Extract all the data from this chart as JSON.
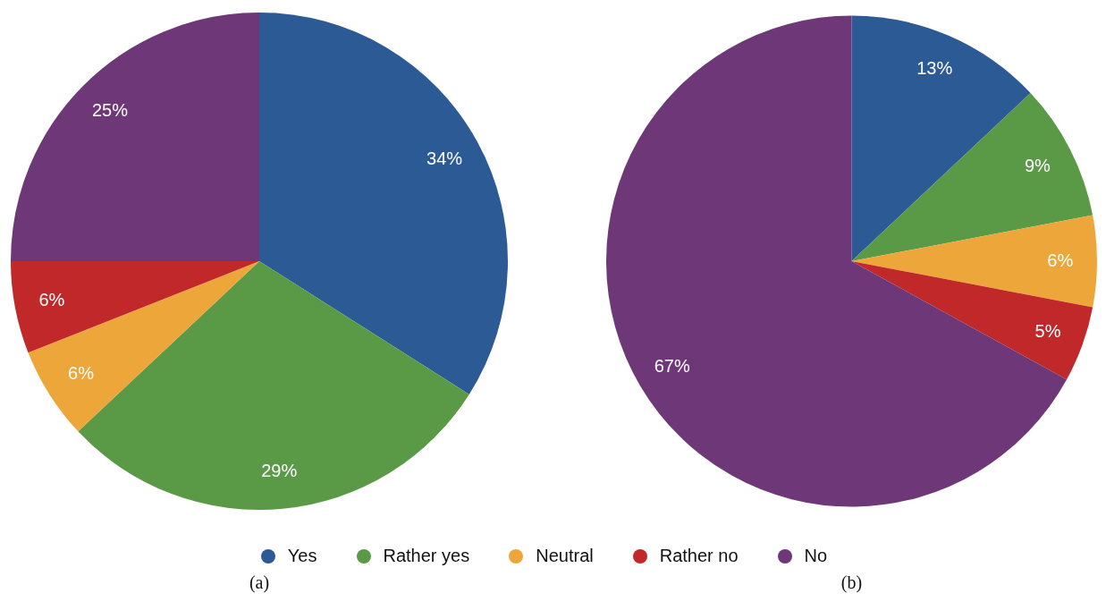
{
  "chart_data": [
    {
      "type": "pie",
      "title": "(a)",
      "categories": [
        "Yes",
        "Rather yes",
        "Neutral",
        "Rather no",
        "No"
      ],
      "values": [
        34,
        29,
        6,
        6,
        25
      ],
      "value_labels": [
        "34%",
        "29%",
        "6%",
        "6%",
        "25%"
      ],
      "colors": [
        "#2c5a94",
        "#5a9a46",
        "#eda63a",
        "#c0282a",
        "#6e3778"
      ],
      "legend": "bottom"
    },
    {
      "type": "pie",
      "title": "(b)",
      "categories": [
        null,
        null,
        null,
        null,
        null
      ],
      "values": [
        13,
        9,
        6,
        5,
        67
      ],
      "value_labels": [
        "13%",
        "9%",
        "6%",
        "5%",
        "67%"
      ],
      "colors": [
        "#2c5a94",
        "#5a9a46",
        "#eda63a",
        "#c0282a",
        "#6e3778"
      ]
    }
  ]
}
